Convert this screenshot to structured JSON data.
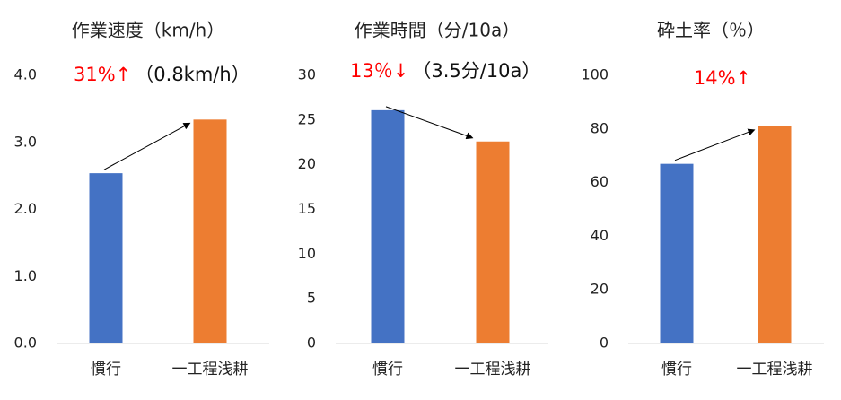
{
  "chart_data": [
    {
      "type": "bar",
      "title": "作業速度（km/h）",
      "categories": [
        "慣行",
        "一工程浅耕"
      ],
      "values": [
        2.54,
        3.34
      ],
      "colors": [
        "#4472c4",
        "#ed7d31"
      ],
      "ylim": [
        0,
        4
      ],
      "yticks": [
        {
          "value": 0,
          "label": "0.0"
        },
        {
          "value": 1,
          "label": "1.0"
        },
        {
          "value": 2,
          "label": "2.0"
        },
        {
          "value": 3,
          "label": "3.0"
        },
        {
          "value": 4,
          "label": "4.0"
        }
      ],
      "annotation": "31%↑",
      "annotation_color": "#ff0000",
      "annotation_note": "（0.8km/h）"
    },
    {
      "type": "bar",
      "title": "作業時間（分/10a）",
      "categories": [
        "慣行",
        "一工程浅耕"
      ],
      "values": [
        26.1,
        22.6
      ],
      "colors": [
        "#4472c4",
        "#ed7d31"
      ],
      "ylim": [
        0,
        30
      ],
      "yticks": [
        0,
        5,
        10,
        15,
        20,
        25,
        30
      ],
      "annotation": "13％↓",
      "annotation_color": "#ff0000",
      "annotation_note": "（3.5分/10a）"
    },
    {
      "type": "bar",
      "title": "砕土率（％）",
      "categories": [
        "慣行",
        "一工程浅耕"
      ],
      "values": [
        67,
        81
      ],
      "colors": [
        "#4472c4",
        "#ed7d31"
      ],
      "ylim": [
        0,
        100
      ],
      "yticks": [
        0,
        20,
        40,
        60,
        80,
        100
      ],
      "annotation": "14%↑",
      "annotation_color": "#ff0000"
    }
  ]
}
